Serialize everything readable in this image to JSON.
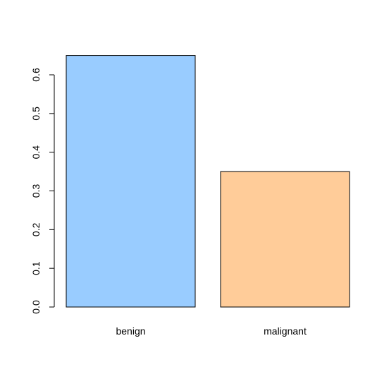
{
  "chart_data": {
    "type": "bar",
    "categories": [
      "benign",
      "malignant"
    ],
    "values": [
      0.65,
      0.35
    ],
    "colors": [
      "#99ccff",
      "#ffcc99"
    ],
    "ylim": [
      0,
      0.6
    ],
    "yticks": [
      "0.0",
      "0.1",
      "0.2",
      "0.3",
      "0.4",
      "0.5",
      "0.6"
    ],
    "grid": false,
    "legend": "none"
  }
}
